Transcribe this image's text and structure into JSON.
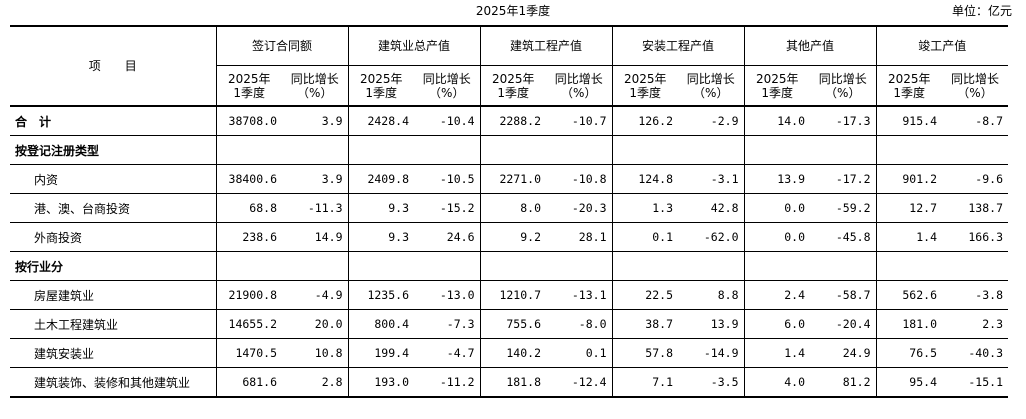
{
  "title": "2025年1季度",
  "unit": "单位：亿元",
  "header": {
    "item_label": "项　　目",
    "groups": [
      "签订合同额",
      "建筑业总产值",
      "建筑工程产值",
      "安装工程产值",
      "其他产值",
      "竣工产值"
    ],
    "sub": {
      "period_line1": "2025年",
      "period_line2": "1季度",
      "growth_line1": "同比增长",
      "growth_line2": "（%）"
    }
  },
  "rows": [
    {
      "label": "合　计",
      "style": "bold",
      "values": [
        "38708.0",
        "3.9",
        "2428.4",
        "-10.4",
        "2288.2",
        "-10.7",
        "126.2",
        "-2.9",
        "14.0",
        "-17.3",
        "915.4",
        "-8.7"
      ]
    },
    {
      "label": "按登记注册类型",
      "style": "bold",
      "values": [
        "",
        "",
        "",
        "",
        "",
        "",
        "",
        "",
        "",
        "",
        "",
        ""
      ]
    },
    {
      "label": "内资",
      "style": "indent",
      "values": [
        "38400.6",
        "3.9",
        "2409.8",
        "-10.5",
        "2271.0",
        "-10.8",
        "124.8",
        "-3.1",
        "13.9",
        "-17.2",
        "901.2",
        "-9.6"
      ]
    },
    {
      "label": "港、澳、台商投资",
      "style": "indent",
      "values": [
        "68.8",
        "-11.3",
        "9.3",
        "-15.2",
        "8.0",
        "-20.3",
        "1.3",
        "42.8",
        "0.0",
        "-59.2",
        "12.7",
        "138.7"
      ]
    },
    {
      "label": "外商投资",
      "style": "indent",
      "values": [
        "238.6",
        "14.9",
        "9.3",
        "24.6",
        "9.2",
        "28.1",
        "0.1",
        "-62.0",
        "0.0",
        "-45.8",
        "1.4",
        "166.3"
      ]
    },
    {
      "label": "按行业分",
      "style": "bold",
      "values": [
        "",
        "",
        "",
        "",
        "",
        "",
        "",
        "",
        "",
        "",
        "",
        ""
      ]
    },
    {
      "label": "房屋建筑业",
      "style": "indent",
      "values": [
        "21900.8",
        "-4.9",
        "1235.6",
        "-13.0",
        "1210.7",
        "-13.1",
        "22.5",
        "8.8",
        "2.4",
        "-58.7",
        "562.6",
        "-3.8"
      ]
    },
    {
      "label": "土木工程建筑业",
      "style": "indent",
      "values": [
        "14655.2",
        "20.0",
        "800.4",
        "-7.3",
        "755.6",
        "-8.0",
        "38.7",
        "13.9",
        "6.0",
        "-20.4",
        "181.0",
        "2.3"
      ]
    },
    {
      "label": "建筑安装业",
      "style": "indent",
      "values": [
        "1470.5",
        "10.8",
        "199.4",
        "-4.7",
        "140.2",
        "0.1",
        "57.8",
        "-14.9",
        "1.4",
        "24.9",
        "76.5",
        "-40.3"
      ]
    },
    {
      "label": "建筑装饰、装修和其他建筑业",
      "style": "indent",
      "values": [
        "681.6",
        "2.8",
        "193.0",
        "-11.2",
        "181.8",
        "-12.4",
        "7.1",
        "-3.5",
        "4.0",
        "81.2",
        "95.4",
        "-15.1"
      ]
    }
  ]
}
